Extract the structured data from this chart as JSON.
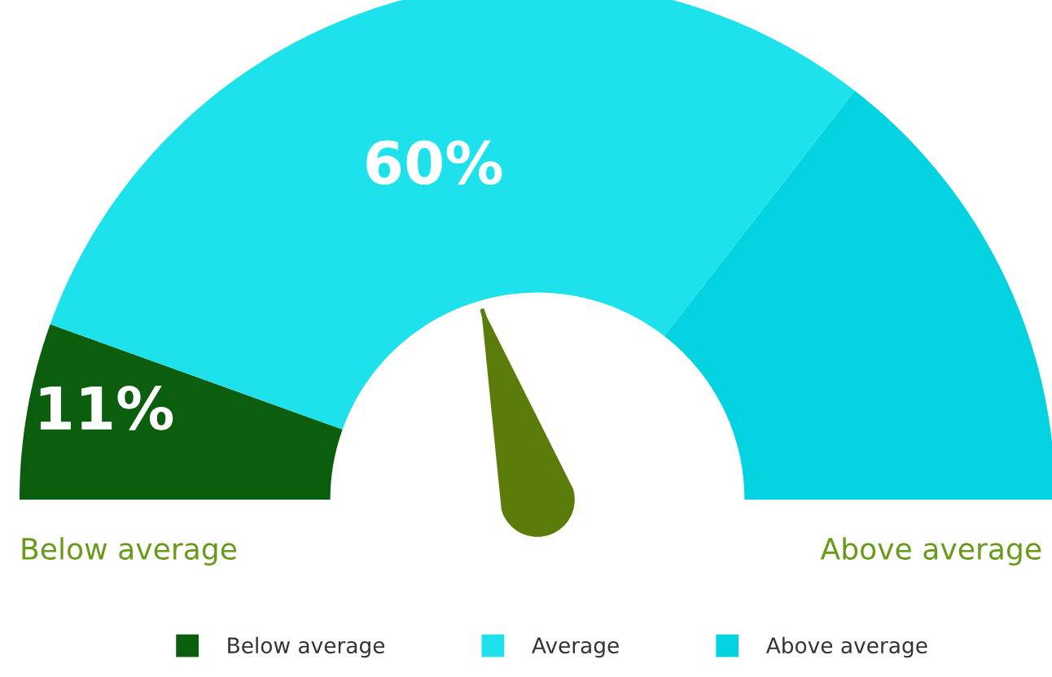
{
  "chart_data": {
    "type": "donut",
    "categories": [
      "Below average",
      "Average",
      "Above average"
    ],
    "values": [
      11,
      60,
      29
    ],
    "colors": [
      "#0b5e0d",
      "#1de2ec",
      "#03d3e0"
    ],
    "value_labels": [
      "11%",
      "60%",
      null
    ],
    "needle": "Average",
    "legend": "bottom",
    "annotations": [
      "Below average",
      "Above average"
    ]
  }
}
